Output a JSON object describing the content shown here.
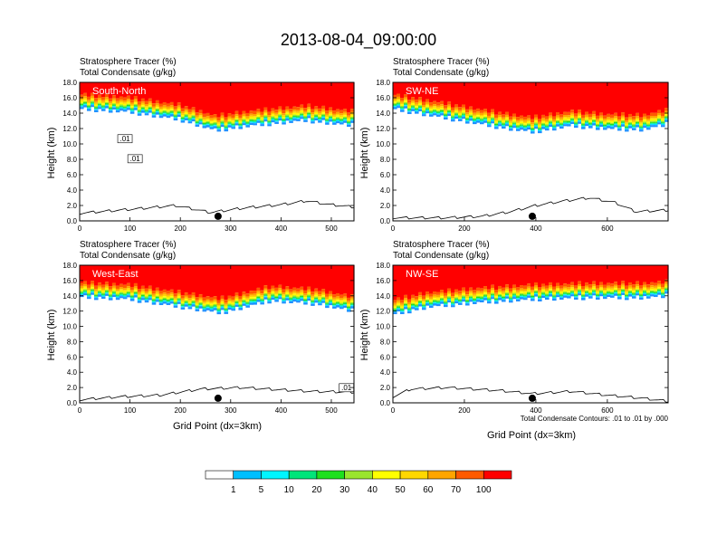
{
  "chart_data": {
    "type": "heatmap",
    "title": "2013-08-04_09:00:00",
    "field_labels": [
      "Stratosphere Tracer   (%)",
      "Total Condensate   (g/kg)"
    ],
    "xlabel": "Grid Point (dx=3km)",
    "ylabel": "Height (km)",
    "contour_note": "Total Condensate Contours: .01 to .01 by .000",
    "ylim": [
      0,
      18
    ],
    "y_ticks": [
      "0.0",
      "2.0",
      "4.0",
      "6.0",
      "8.0",
      "10.0",
      "12.0",
      "14.0",
      "16.0",
      "18.0"
    ],
    "colorbar": {
      "levels": [
        "1",
        "5",
        "10",
        "20",
        "30",
        "40",
        "50",
        "60",
        "70",
        "100"
      ],
      "colors": [
        "#ffffff",
        "#1e90ff",
        "#00bfff",
        "#00f5ff",
        "#00e57a",
        "#1ee01e",
        "#9ae52d",
        "#ffff00",
        "#ffd700",
        "#ffa500",
        "#ff5a00",
        "#ff0000"
      ]
    },
    "panels": [
      {
        "name": "South-North",
        "xlim": [
          0,
          545
        ],
        "x_ticks": [
          0,
          100,
          200,
          300,
          400,
          500
        ],
        "x_tick_labels": [
          "0",
          "100",
          "200",
          "300",
          "400",
          "500"
        ],
        "marker_x": 275,
        "contour_labels": [
          ".01",
          ".01"
        ],
        "tropopause_km": [
          [
            0,
            14.8
          ],
          [
            100,
            14.4
          ],
          [
            200,
            13.4
          ],
          [
            270,
            12.0
          ],
          [
            350,
            12.7
          ],
          [
            450,
            13.3
          ],
          [
            545,
            12.6
          ]
        ],
        "terrain_km": [
          [
            0,
            1.0
          ],
          [
            60,
            1.3
          ],
          [
            120,
            1.6
          ],
          [
            190,
            2.0
          ],
          [
            260,
            1.1
          ],
          [
            330,
            1.7
          ],
          [
            400,
            2.1
          ],
          [
            450,
            2.6
          ],
          [
            500,
            2.1
          ],
          [
            545,
            1.8
          ]
        ]
      },
      {
        "name": "SW-NE",
        "xlim": [
          0,
          770
        ],
        "x_ticks": [
          0,
          200,
          400,
          600
        ],
        "x_tick_labels": [
          "0",
          "200",
          "400",
          "600"
        ],
        "marker_x": 390,
        "contour_labels": [],
        "tropopause_km": [
          [
            0,
            14.8
          ],
          [
            150,
            13.6
          ],
          [
            300,
            12.4
          ],
          [
            390,
            11.8
          ],
          [
            500,
            12.6
          ],
          [
            600,
            12.2
          ],
          [
            700,
            12.1
          ],
          [
            770,
            12.8
          ]
        ],
        "terrain_km": [
          [
            0,
            0.4
          ],
          [
            150,
            0.4
          ],
          [
            250,
            0.6
          ],
          [
            330,
            1.2
          ],
          [
            400,
            2.0
          ],
          [
            480,
            2.6
          ],
          [
            550,
            3.0
          ],
          [
            620,
            2.4
          ],
          [
            680,
            1.2
          ],
          [
            770,
            1.4
          ]
        ]
      },
      {
        "name": "West-East",
        "xlim": [
          0,
          545
        ],
        "x_ticks": [
          0,
          100,
          200,
          300,
          400,
          500
        ],
        "x_tick_labels": [
          "0",
          "100",
          "200",
          "300",
          "400",
          "500"
        ],
        "marker_x": 275,
        "contour_labels": [
          ".01"
        ],
        "tropopause_km": [
          [
            0,
            14.1
          ],
          [
            100,
            13.8
          ],
          [
            200,
            12.8
          ],
          [
            280,
            12.0
          ],
          [
            380,
            13.6
          ],
          [
            470,
            13.2
          ],
          [
            545,
            12.2
          ]
        ],
        "terrain_km": [
          [
            0,
            0.4
          ],
          [
            80,
            0.8
          ],
          [
            160,
            1.0
          ],
          [
            240,
            1.8
          ],
          [
            320,
            2.0
          ],
          [
            400,
            1.7
          ],
          [
            460,
            1.5
          ],
          [
            545,
            1.4
          ]
        ]
      },
      {
        "name": "NW-SE",
        "xlim": [
          0,
          770
        ],
        "x_ticks": [
          0,
          200,
          400,
          600
        ],
        "x_tick_labels": [
          "0",
          "200",
          "400",
          "600"
        ],
        "marker_x": 390,
        "contour_labels": [],
        "tropopause_km": [
          [
            0,
            11.8
          ],
          [
            100,
            12.8
          ],
          [
            250,
            13.4
          ],
          [
            400,
            13.8
          ],
          [
            550,
            14.0
          ],
          [
            700,
            14.0
          ],
          [
            770,
            14.2
          ]
        ],
        "terrain_km": [
          [
            0,
            0.8
          ],
          [
            50,
            1.8
          ],
          [
            150,
            2.0
          ],
          [
            300,
            1.6
          ],
          [
            390,
            1.2
          ],
          [
            500,
            1.5
          ],
          [
            600,
            1.0
          ],
          [
            700,
            0.6
          ],
          [
            770,
            0.2
          ]
        ]
      }
    ]
  }
}
